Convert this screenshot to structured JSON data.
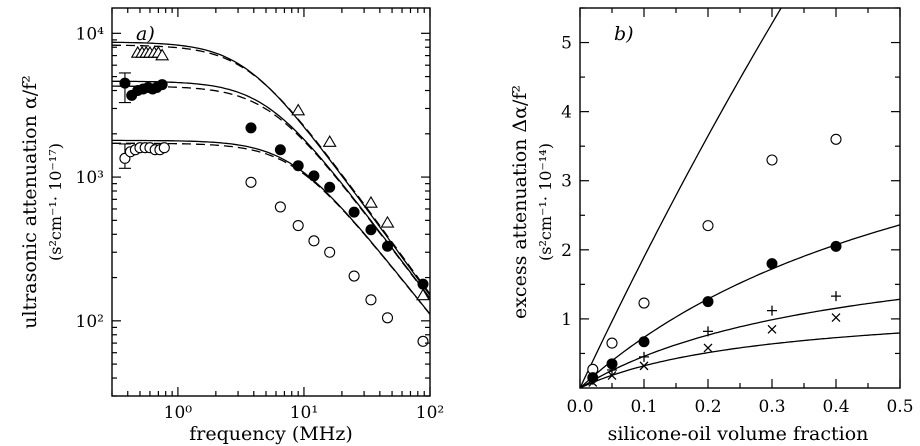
{
  "chart_data": [
    {
      "type": "scatter",
      "panel_label": "a)",
      "xlabel": "frequency (MHz)",
      "ylabel": "ultrasonic attenuation α/f²",
      "yunit": "(s²cm⁻¹· 10⁻¹⁷)",
      "xscale": "log",
      "yscale": "log",
      "xlim": [
        0.3,
        100
      ],
      "ylim": [
        30,
        15000
      ],
      "xticks": [
        1,
        10,
        100
      ],
      "xtick_labels": [
        "10⁰",
        "10¹",
        "10²"
      ],
      "yticks": [
        100,
        1000,
        10000
      ],
      "ytick_labels": [
        "10²",
        "10³",
        "10⁴"
      ],
      "series": [
        {
          "marker": "triangle",
          "x": [
            0.48,
            0.52,
            0.56,
            0.6,
            0.65,
            0.7,
            0.75,
            9,
            16,
            34,
            46,
            88
          ],
          "y": [
            7300,
            7300,
            7300,
            7300,
            7300,
            7300,
            7000,
            2900,
            1750,
            660,
            480,
            150
          ]
        },
        {
          "marker": "filled-circle",
          "x": [
            0.38,
            0.43,
            0.48,
            0.53,
            0.58,
            0.63,
            0.68,
            0.75,
            3.8,
            6.5,
            9,
            12,
            16,
            25,
            34,
            46,
            88
          ],
          "y": [
            4500,
            3700,
            4000,
            4100,
            4200,
            4100,
            4200,
            4400,
            2200,
            1550,
            1200,
            1020,
            850,
            570,
            430,
            330,
            180
          ]
        },
        {
          "marker": "open-circle",
          "x": [
            0.38,
            0.42,
            0.46,
            0.5,
            0.55,
            0.6,
            0.66,
            0.72,
            0.78,
            3.8,
            6.5,
            9,
            12,
            16,
            25,
            34,
            46,
            88
          ],
          "y": [
            1350,
            1500,
            1550,
            1600,
            1600,
            1600,
            1550,
            1550,
            1600,
            920,
            620,
            460,
            360,
            300,
            205,
            140,
            105,
            72
          ]
        }
      ],
      "fit_curves": [
        {
          "low": 8700,
          "fc": 3.4,
          "s": 0.6
        },
        {
          "low": 4650,
          "fc": 5.0,
          "s": 0.58
        },
        {
          "low": 1800,
          "fc": 8.0,
          "s": 0.55
        }
      ],
      "dashed_curves": [
        {
          "low": 8300,
          "fc": 3.6,
          "s": 0.6
        },
        {
          "low": 4300,
          "fc": 5.3,
          "s": 0.58
        },
        {
          "low": 1720,
          "fc": 8.3,
          "s": 0.55
        }
      ],
      "error_bars": [
        {
          "x": 0.38,
          "y": 4500,
          "ylo": 3300,
          "yhi": 5300
        },
        {
          "x": 0.38,
          "y": 1350,
          "ylo": 1150,
          "yhi": 1700
        }
      ]
    },
    {
      "type": "scatter",
      "panel_label": "b)",
      "xlabel": "silicone-oil volume fraction",
      "ylabel": "excess attenuation Δα/f²",
      "yunit": "(s²cm⁻¹· 10⁻¹⁴)",
      "xlim": [
        0,
        0.5
      ],
      "ylim": [
        0,
        5.5
      ],
      "xticks": [
        0,
        0.1,
        0.2,
        0.3,
        0.4,
        0.5
      ],
      "xtick_labels": [
        "0.0",
        "0.1",
        "0.2",
        "0.3",
        "0.4",
        "0.5"
      ],
      "yticks": [
        1,
        2,
        3,
        4,
        5
      ],
      "ytick_labels": [
        "1",
        "2",
        "3",
        "4",
        "5"
      ],
      "series": [
        {
          "marker": "open-circle",
          "x": [
            0.02,
            0.05,
            0.1,
            0.2,
            0.3,
            0.4
          ],
          "y": [
            0.27,
            0.65,
            1.23,
            2.35,
            3.3,
            3.6
          ]
        },
        {
          "marker": "filled-circle",
          "x": [
            0.02,
            0.05,
            0.1,
            0.2,
            0.3,
            0.4
          ],
          "y": [
            0.15,
            0.35,
            0.67,
            1.25,
            1.8,
            2.05
          ]
        },
        {
          "marker": "plus",
          "x": [
            0.02,
            0.05,
            0.1,
            0.2,
            0.3,
            0.4
          ],
          "y": [
            0.12,
            0.26,
            0.45,
            0.82,
            1.12,
            1.33
          ]
        },
        {
          "marker": "cross",
          "x": [
            0.02,
            0.05,
            0.1,
            0.2,
            0.3,
            0.4
          ],
          "y": [
            0.08,
            0.18,
            0.32,
            0.58,
            0.85,
            1.02
          ]
        }
      ],
      "fit_curves": [
        {
          "a": 19.7,
          "b": 0.2
        },
        {
          "a": 8.5,
          "b": 0.8
        },
        {
          "a": 5.7,
          "b": 1.22
        },
        {
          "a": 4.3,
          "b": 1.7
        }
      ]
    }
  ]
}
